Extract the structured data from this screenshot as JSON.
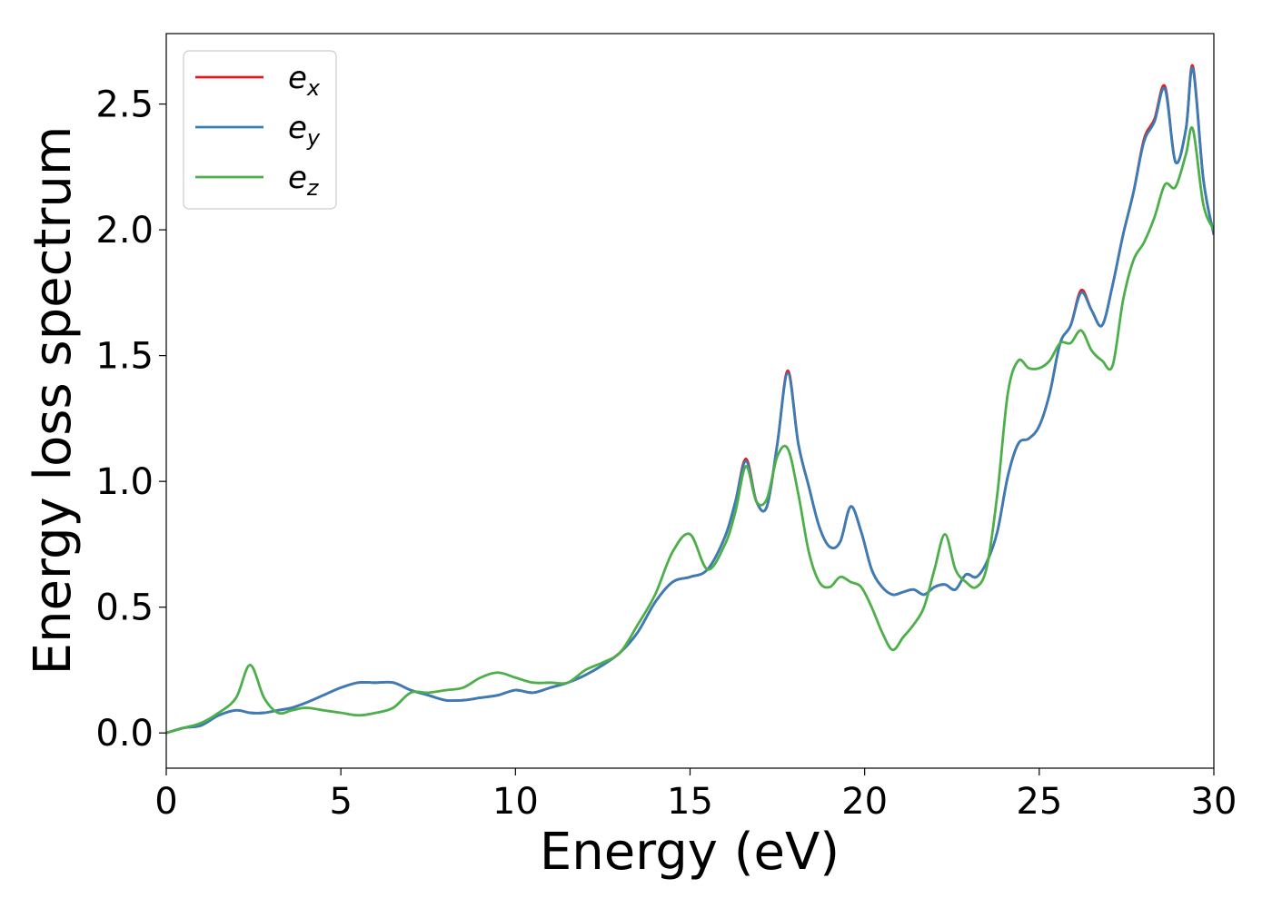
{
  "chart_data": {
    "type": "line",
    "xlabel": "Energy (eV)",
    "ylabel": "Energy loss spectrum",
    "xlim": [
      0,
      30
    ],
    "ylim": [
      -0.14,
      2.78
    ],
    "xticks": [
      "0",
      "5",
      "10",
      "15",
      "20",
      "25",
      "30"
    ],
    "yticks": [
      "0.0",
      "0.5",
      "1.0",
      "1.5",
      "2.0",
      "2.5"
    ],
    "grid": false,
    "legend_position": "top-left",
    "x": [
      0,
      0.5,
      1,
      1.5,
      2,
      2.4,
      2.8,
      3.2,
      3.6,
      4,
      4.5,
      5,
      5.5,
      6,
      6.5,
      7,
      7.5,
      8,
      8.5,
      9,
      9.5,
      10,
      10.5,
      11,
      11.5,
      12,
      12.5,
      13,
      13.5,
      14,
      14.5,
      15,
      15.5,
      16,
      16.3,
      16.6,
      16.9,
      17.2,
      17.5,
      17.8,
      18.1,
      18.4,
      18.7,
      19,
      19.3,
      19.6,
      19.9,
      20.2,
      20.5,
      20.8,
      21.1,
      21.4,
      21.7,
      22,
      22.3,
      22.6,
      22.9,
      23.2,
      23.5,
      23.8,
      24.1,
      24.4,
      24.7,
      25,
      25.3,
      25.6,
      25.9,
      26.2,
      26.5,
      26.8,
      27.1,
      27.4,
      27.7,
      28,
      28.3,
      28.6,
      28.9,
      29.2,
      29.4,
      29.7,
      30
    ],
    "series": [
      {
        "name": "e",
        "sub": "x",
        "color": "#e41a1c",
        "values": [
          0,
          0.02,
          0.03,
          0.07,
          0.09,
          0.08,
          0.08,
          0.09,
          0.1,
          0.12,
          0.15,
          0.18,
          0.2,
          0.2,
          0.2,
          0.17,
          0.15,
          0.13,
          0.13,
          0.14,
          0.15,
          0.17,
          0.16,
          0.18,
          0.2,
          0.23,
          0.27,
          0.32,
          0.4,
          0.52,
          0.6,
          0.62,
          0.65,
          0.78,
          0.92,
          1.09,
          0.92,
          0.9,
          1.15,
          1.44,
          1.15,
          0.98,
          0.82,
          0.74,
          0.76,
          0.9,
          0.8,
          0.65,
          0.58,
          0.55,
          0.56,
          0.57,
          0.55,
          0.58,
          0.59,
          0.57,
          0.63,
          0.62,
          0.68,
          0.8,
          1.02,
          1.15,
          1.17,
          1.22,
          1.35,
          1.55,
          1.62,
          1.76,
          1.68,
          1.62,
          1.78,
          1.98,
          2.15,
          2.36,
          2.44,
          2.57,
          2.27,
          2.4,
          2.65,
          2.2,
          1.98
        ]
      },
      {
        "name": "e",
        "sub": "y",
        "color": "#377eb8",
        "values": [
          0,
          0.02,
          0.03,
          0.07,
          0.09,
          0.08,
          0.08,
          0.09,
          0.1,
          0.12,
          0.15,
          0.18,
          0.2,
          0.2,
          0.2,
          0.17,
          0.15,
          0.13,
          0.13,
          0.14,
          0.15,
          0.17,
          0.16,
          0.18,
          0.2,
          0.23,
          0.27,
          0.32,
          0.4,
          0.52,
          0.6,
          0.62,
          0.65,
          0.78,
          0.92,
          1.08,
          0.92,
          0.9,
          1.15,
          1.43,
          1.15,
          0.98,
          0.82,
          0.74,
          0.76,
          0.9,
          0.8,
          0.65,
          0.58,
          0.55,
          0.56,
          0.57,
          0.55,
          0.58,
          0.59,
          0.57,
          0.63,
          0.62,
          0.68,
          0.8,
          1.02,
          1.15,
          1.17,
          1.22,
          1.35,
          1.55,
          1.62,
          1.75,
          1.68,
          1.62,
          1.78,
          1.98,
          2.15,
          2.35,
          2.43,
          2.56,
          2.27,
          2.4,
          2.64,
          2.2,
          1.98
        ]
      },
      {
        "name": "e",
        "sub": "z",
        "color": "#4daf4a",
        "values": [
          0,
          0.02,
          0.04,
          0.08,
          0.14,
          0.27,
          0.14,
          0.08,
          0.09,
          0.1,
          0.09,
          0.08,
          0.07,
          0.08,
          0.1,
          0.16,
          0.16,
          0.17,
          0.18,
          0.22,
          0.24,
          0.22,
          0.2,
          0.2,
          0.2,
          0.25,
          0.28,
          0.32,
          0.43,
          0.55,
          0.72,
          0.79,
          0.65,
          0.75,
          0.88,
          1.06,
          0.92,
          0.93,
          1.1,
          1.13,
          0.95,
          0.72,
          0.6,
          0.58,
          0.62,
          0.6,
          0.58,
          0.5,
          0.4,
          0.33,
          0.38,
          0.43,
          0.5,
          0.65,
          0.79,
          0.65,
          0.6,
          0.58,
          0.66,
          0.95,
          1.35,
          1.48,
          1.45,
          1.45,
          1.48,
          1.55,
          1.55,
          1.6,
          1.52,
          1.48,
          1.46,
          1.72,
          1.88,
          1.95,
          2.05,
          2.18,
          2.17,
          2.3,
          2.4,
          2.1,
          2.0
        ]
      }
    ]
  }
}
